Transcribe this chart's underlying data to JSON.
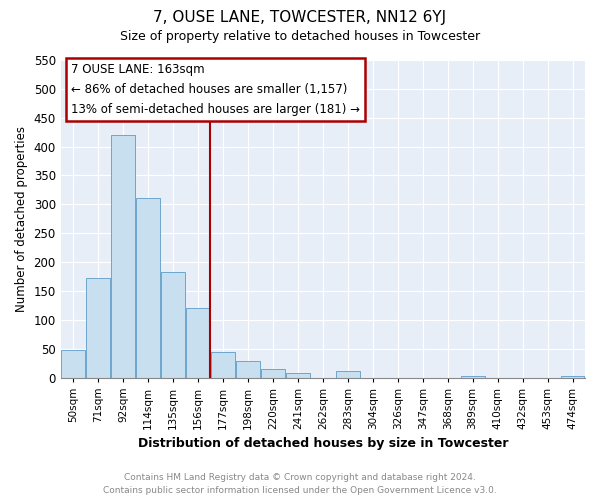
{
  "title": "7, OUSE LANE, TOWCESTER, NN12 6YJ",
  "subtitle": "Size of property relative to detached houses in Towcester",
  "xlabel": "Distribution of detached houses by size in Towcester",
  "ylabel": "Number of detached properties",
  "bar_labels": [
    "50sqm",
    "71sqm",
    "92sqm",
    "114sqm",
    "135sqm",
    "156sqm",
    "177sqm",
    "198sqm",
    "220sqm",
    "241sqm",
    "262sqm",
    "283sqm",
    "304sqm",
    "326sqm",
    "347sqm",
    "368sqm",
    "389sqm",
    "410sqm",
    "432sqm",
    "453sqm",
    "474sqm"
  ],
  "bar_values": [
    47,
    173,
    420,
    311,
    183,
    120,
    45,
    28,
    14,
    8,
    0,
    11,
    0,
    0,
    0,
    0,
    3,
    0,
    0,
    0,
    2
  ],
  "bar_color": "#c8dff0",
  "bar_edge_color": "#5b9bc8",
  "vline_x": 5.5,
  "vline_color": "#aa0000",
  "annotation_title": "7 OUSE LANE: 163sqm",
  "annotation_line1": "← 86% of detached houses are smaller (1,157)",
  "annotation_line2": "13% of semi-detached houses are larger (181) →",
  "annotation_box_color": "#ffffff",
  "annotation_box_edge": "#aa0000",
  "ylim": [
    0,
    550
  ],
  "yticks": [
    0,
    50,
    100,
    150,
    200,
    250,
    300,
    350,
    400,
    450,
    500,
    550
  ],
  "footer_line1": "Contains HM Land Registry data © Crown copyright and database right 2024.",
  "footer_line2": "Contains public sector information licensed under the Open Government Licence v3.0.",
  "bg_color": "#ffffff",
  "plot_bg_color": "#e8eef8",
  "grid_color": "#ffffff"
}
